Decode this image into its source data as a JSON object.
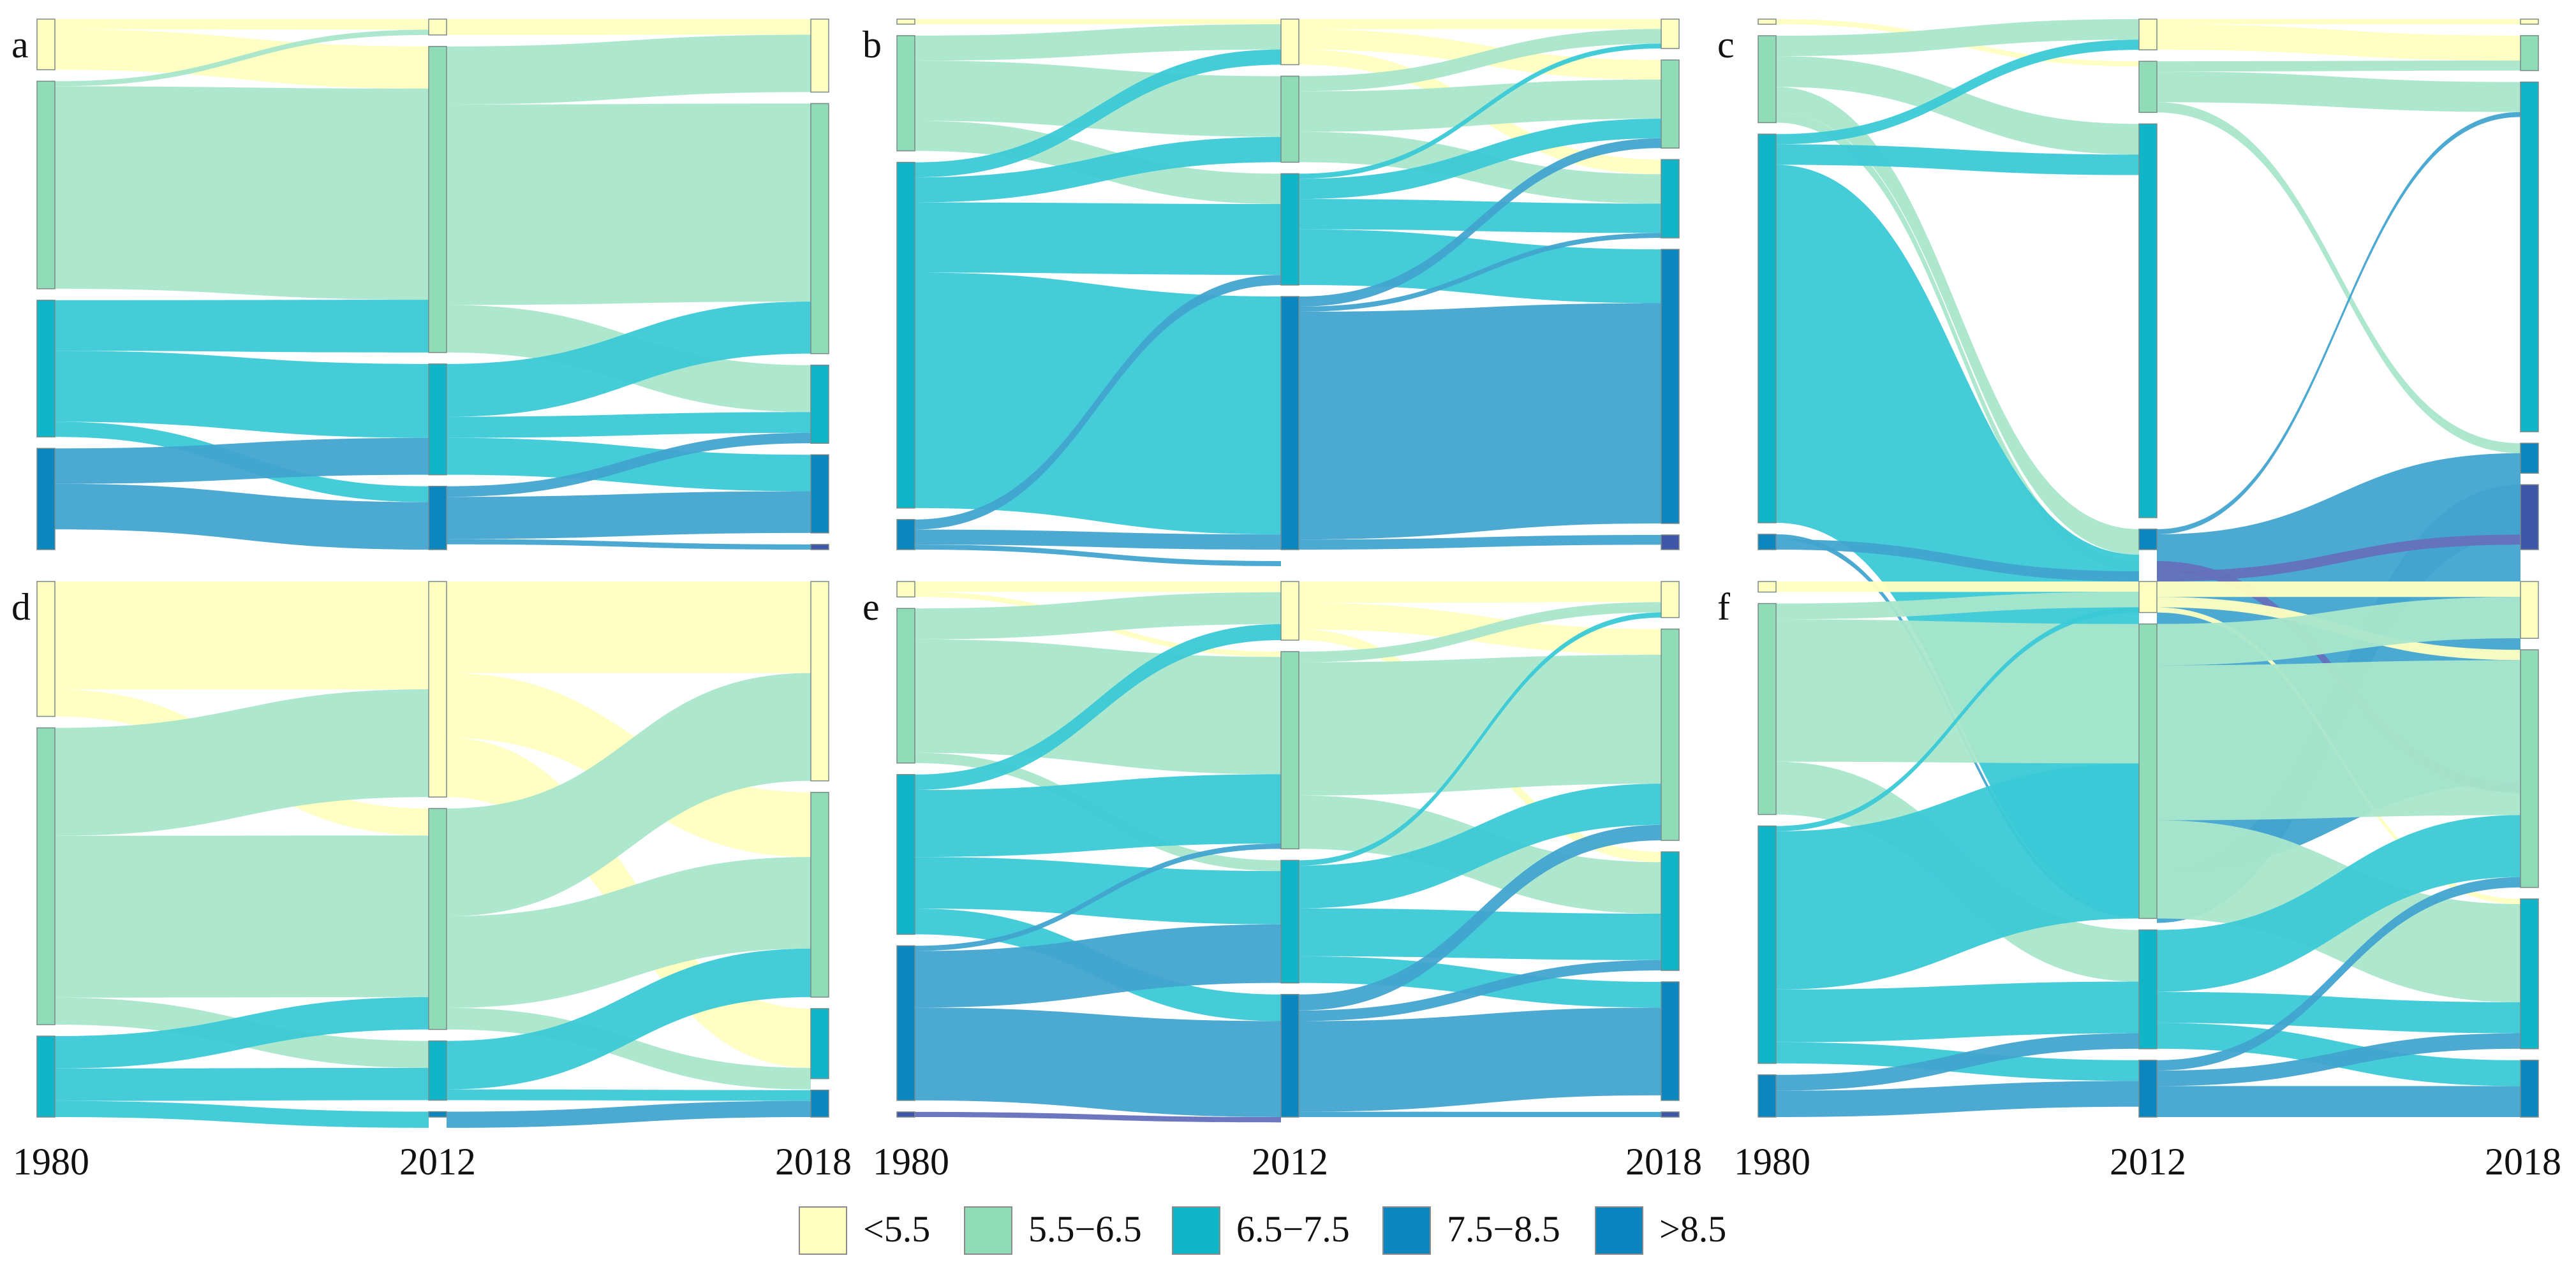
{
  "figure": {
    "categories": [
      "<5.5",
      "5.5−6.5",
      "6.5−7.5",
      "7.5−8.5",
      ">8.5"
    ],
    "node_colors": [
      "#ffffbf",
      "#8fdcb6",
      "#0fb6c8",
      "#0c86be",
      "#3f56a8"
    ],
    "flow_colors": [
      "#ffffc0",
      "#a9e6cb",
      "#3ac9d7",
      "#42a4cf",
      "#6570bc"
    ],
    "years": [
      "1980",
      "2012",
      "2018"
    ]
  },
  "chart_data": [
    {
      "type": "sankey",
      "panel": "a",
      "years": [
        "1980",
        "2012",
        "2018"
      ],
      "nodes": {
        "1980": [
          10,
          41,
          27,
          20,
          0
        ],
        "2012": [
          3,
          58,
          21,
          12,
          0
        ],
        "2018": [
          14,
          48,
          15,
          15,
          1
        ]
      },
      "flows_1980_2012": [
        {
          "from": "<5.5",
          "to": "<5.5",
          "value": 2
        },
        {
          "from": "<5.5",
          "to": "5.5−6.5",
          "value": 8
        },
        {
          "from": "5.5−6.5",
          "to": "<5.5",
          "value": 1
        },
        {
          "from": "5.5−6.5",
          "to": "5.5−6.5",
          "value": 40
        },
        {
          "from": "6.5−7.5",
          "to": "5.5−6.5",
          "value": 10
        },
        {
          "from": "6.5−7.5",
          "to": "6.5−7.5",
          "value": 14
        },
        {
          "from": "6.5−7.5",
          "to": "7.5−8.5",
          "value": 3
        },
        {
          "from": "7.5−8.5",
          "to": "6.5−7.5",
          "value": 7
        },
        {
          "from": "7.5−8.5",
          "to": "7.5−8.5",
          "value": 9
        }
      ],
      "flows_2012_2018": [
        {
          "from": "<5.5",
          "to": "<5.5",
          "value": 3
        },
        {
          "from": "5.5−6.5",
          "to": "<5.5",
          "value": 11
        },
        {
          "from": "5.5−6.5",
          "to": "5.5−6.5",
          "value": 38
        },
        {
          "from": "5.5−6.5",
          "to": "6.5−7.5",
          "value": 9
        },
        {
          "from": "6.5−7.5",
          "to": "5.5−6.5",
          "value": 10
        },
        {
          "from": "6.5−7.5",
          "to": "6.5−7.5",
          "value": 4
        },
        {
          "from": "6.5−7.5",
          "to": "7.5−8.5",
          "value": 7
        },
        {
          "from": "7.5−8.5",
          "to": "6.5−7.5",
          "value": 2
        },
        {
          "from": "7.5−8.5",
          "to": "7.5−8.5",
          "value": 8
        },
        {
          "from": "7.5−8.5",
          "to": ">8.5",
          "value": 1
        }
      ]
    },
    {
      "type": "sankey",
      "panel": "b",
      "years": [
        "1980",
        "2012",
        "2018"
      ],
      "nodes": {
        "1980": [
          1,
          23,
          69,
          6,
          0
        ],
        "2012": [
          9,
          17,
          22,
          50,
          0
        ],
        "2018": [
          6,
          18,
          16,
          56,
          3
        ]
      },
      "flows_1980_2012": [
        {
          "from": "<5.5",
          "to": "<5.5",
          "value": 1
        },
        {
          "from": "5.5−6.5",
          "to": "<5.5",
          "value": 5
        },
        {
          "from": "5.5−6.5",
          "to": "5.5−6.5",
          "value": 12
        },
        {
          "from": "5.5−6.5",
          "to": "6.5−7.5",
          "value": 6
        },
        {
          "from": "6.5−7.5",
          "to": "<5.5",
          "value": 3
        },
        {
          "from": "6.5−7.5",
          "to": "5.5−6.5",
          "value": 5
        },
        {
          "from": "6.5−7.5",
          "to": "6.5−7.5",
          "value": 14
        },
        {
          "from": "6.5−7.5",
          "to": "7.5−8.5",
          "value": 47
        },
        {
          "from": "7.5−8.5",
          "to": "6.5−7.5",
          "value": 2
        },
        {
          "from": "7.5−8.5",
          "to": "7.5−8.5",
          "value": 3
        },
        {
          "from": "7.5−8.5",
          "to": ">8.5",
          "value": 1
        }
      ],
      "flows_2012_2018": [
        {
          "from": "<5.5",
          "to": "<5.5",
          "value": 2
        },
        {
          "from": "<5.5",
          "to": "5.5−6.5",
          "value": 4
        },
        {
          "from": "<5.5",
          "to": "6.5−7.5",
          "value": 3
        },
        {
          "from": "5.5−6.5",
          "to": "<5.5",
          "value": 3
        },
        {
          "from": "5.5−6.5",
          "to": "5.5−6.5",
          "value": 8
        },
        {
          "from": "5.5−6.5",
          "to": "6.5−7.5",
          "value": 6
        },
        {
          "from": "6.5−7.5",
          "to": "<5.5",
          "value": 1
        },
        {
          "from": "6.5−7.5",
          "to": "5.5−6.5",
          "value": 4
        },
        {
          "from": "6.5−7.5",
          "to": "6.5−7.5",
          "value": 6
        },
        {
          "from": "6.5−7.5",
          "to": "7.5−8.5",
          "value": 11
        },
        {
          "from": "7.5−8.5",
          "to": "5.5−6.5",
          "value": 2
        },
        {
          "from": "7.5−8.5",
          "to": "6.5−7.5",
          "value": 1
        },
        {
          "from": "7.5−8.5",
          "to": "7.5−8.5",
          "value": 45
        },
        {
          "from": "7.5−8.5",
          "to": ">8.5",
          "value": 2
        },
        {
          "from": "7.5−8.5",
          "to": "7.5−8.5",
          "value": 0
        }
      ]
    },
    {
      "type": "sankey",
      "panel": "c",
      "years": [
        "1980",
        "2012",
        "2018"
      ],
      "nodes": {
        "1980": [
          1,
          17,
          76,
          3,
          0
        ],
        "2012": [
          6,
          10,
          77,
          4,
          0
        ],
        "2018": [
          1,
          7,
          70,
          6,
          13
        ]
      },
      "flows_1980_2012": [
        {
          "from": "<5.5",
          "to": "5.5−6.5",
          "value": 1
        },
        {
          "from": "5.5−6.5",
          "to": "<5.5",
          "value": 4
        },
        {
          "from": "5.5−6.5",
          "to": "6.5−7.5",
          "value": 6
        },
        {
          "from": "5.5−6.5",
          "to": "7.5−8.5",
          "value": 5
        },
        {
          "from": "5.5−6.5",
          "to": ">8.5",
          "value": 2
        },
        {
          "from": "6.5−7.5",
          "to": "<5.5",
          "value": 2
        },
        {
          "from": "6.5−7.5",
          "to": "6.5−7.5",
          "value": 4
        },
        {
          "from": "6.5−7.5",
          "to": "7.5−8.5",
          "value": 70
        },
        {
          "from": "7.5−8.5",
          "to": "7.5−8.5",
          "value": 1
        },
        {
          "from": "7.5−8.5",
          "to": ">8.5",
          "value": 2
        }
      ],
      "flows_2012_2018": [
        {
          "from": "<5.5",
          "to": "<5.5",
          "value": 1
        },
        {
          "from": "<5.5",
          "to": "5.5−6.5",
          "value": 5
        },
        {
          "from": "5.5−6.5",
          "to": "5.5−6.5",
          "value": 2
        },
        {
          "from": "5.5−6.5",
          "to": "6.5−7.5",
          "value": 6
        },
        {
          "from": "5.5−6.5",
          "to": "7.5−8.5",
          "value": 2
        },
        {
          "from": "7.5−8.5",
          "to": "6.5−7.5",
          "value": 1
        },
        {
          "from": "7.5−8.5",
          "to": "7.5−8.5",
          "value": 66
        },
        {
          "from": "7.5−8.5",
          "to": ">8.5",
          "value": 10
        },
        {
          "from": ">8.5",
          "to": "7.5−8.5",
          "value": 2
        },
        {
          "from": ">8.5",
          "to": ">8.5",
          "value": 2
        }
      ]
    },
    {
      "type": "sankey",
      "panel": "d",
      "years": [
        "1980",
        "2012",
        "2018"
      ],
      "nodes": {
        "1980": [
          25,
          55,
          15,
          0,
          0
        ],
        "2012": [
          40,
          41,
          11,
          1,
          0
        ],
        "2018": [
          37,
          38,
          13,
          5,
          0
        ]
      },
      "flows_1980_2012": [
        {
          "from": "<5.5",
          "to": "<5.5",
          "value": 20
        },
        {
          "from": "<5.5",
          "to": "5.5−6.5",
          "value": 5
        },
        {
          "from": "5.5−6.5",
          "to": "<5.5",
          "value": 20
        },
        {
          "from": "5.5−6.5",
          "to": "5.5−6.5",
          "value": 30
        },
        {
          "from": "5.5−6.5",
          "to": "6.5−7.5",
          "value": 5
        },
        {
          "from": "6.5−7.5",
          "to": "5.5−6.5",
          "value": 6
        },
        {
          "from": "6.5−7.5",
          "to": "6.5−7.5",
          "value": 6
        },
        {
          "from": "6.5−7.5",
          "to": "7.5−8.5",
          "value": 3
        }
      ],
      "flows_2012_2018": [
        {
          "from": "<5.5",
          "to": "<5.5",
          "value": 17
        },
        {
          "from": "<5.5",
          "to": "5.5−6.5",
          "value": 12
        },
        {
          "from": "<5.5",
          "to": "6.5−7.5",
          "value": 11
        },
        {
          "from": "5.5−6.5",
          "to": "<5.5",
          "value": 20
        },
        {
          "from": "5.5−6.5",
          "to": "5.5−6.5",
          "value": 17
        },
        {
          "from": "5.5−6.5",
          "to": "6.5−7.5",
          "value": 4
        },
        {
          "from": "6.5−7.5",
          "to": "5.5−6.5",
          "value": 9
        },
        {
          "from": "6.5−7.5",
          "to": "7.5−8.5",
          "value": 2
        },
        {
          "from": "7.5−8.5",
          "to": "7.5−8.5",
          "value": 3
        }
      ]
    },
    {
      "type": "sankey",
      "panel": "e",
      "years": [
        "1980",
        "2012",
        "2018"
      ],
      "nodes": {
        "1980": [
          3,
          30,
          31,
          30,
          1
        ],
        "2012": [
          11,
          37,
          23,
          23,
          0
        ],
        "2018": [
          7,
          41,
          23,
          23,
          1
        ]
      },
      "flows_1980_2012": [
        {
          "from": "<5.5",
          "to": "<5.5",
          "value": 2
        },
        {
          "from": "<5.5",
          "to": "5.5−6.5",
          "value": 1
        },
        {
          "from": "5.5−6.5",
          "to": "<5.5",
          "value": 6
        },
        {
          "from": "5.5−6.5",
          "to": "5.5−6.5",
          "value": 22
        },
        {
          "from": "5.5−6.5",
          "to": "6.5−7.5",
          "value": 2
        },
        {
          "from": "6.5−7.5",
          "to": "<5.5",
          "value": 3
        },
        {
          "from": "6.5−7.5",
          "to": "5.5−6.5",
          "value": 13
        },
        {
          "from": "6.5−7.5",
          "to": "6.5−7.5",
          "value": 10
        },
        {
          "from": "6.5−7.5",
          "to": "7.5−8.5",
          "value": 5
        },
        {
          "from": "7.5−8.5",
          "to": "5.5−6.5",
          "value": 1
        },
        {
          "from": "7.5−8.5",
          "to": "6.5−7.5",
          "value": 11
        },
        {
          "from": "7.5−8.5",
          "to": "7.5−8.5",
          "value": 18
        },
        {
          "from": ">8.5",
          "to": "7.5−8.5",
          "value": 1
        }
      ],
      "flows_2012_2018": [
        {
          "from": "<5.5",
          "to": "<5.5",
          "value": 4
        },
        {
          "from": "<5.5",
          "to": "5.5−6.5",
          "value": 5
        },
        {
          "from": "<5.5",
          "to": "6.5−7.5",
          "value": 2
        },
        {
          "from": "5.5−6.5",
          "to": "<5.5",
          "value": 2
        },
        {
          "from": "5.5−6.5",
          "to": "5.5−6.5",
          "value": 25
        },
        {
          "from": "5.5−6.5",
          "to": "6.5−7.5",
          "value": 10
        },
        {
          "from": "6.5−7.5",
          "to": "<5.5",
          "value": 1
        },
        {
          "from": "6.5−7.5",
          "to": "5.5−6.5",
          "value": 8
        },
        {
          "from": "6.5−7.5",
          "to": "6.5−7.5",
          "value": 9
        },
        {
          "from": "6.5−7.5",
          "to": "7.5−8.5",
          "value": 5
        },
        {
          "from": "7.5−8.5",
          "to": "5.5−6.5",
          "value": 3
        },
        {
          "from": "7.5−8.5",
          "to": "6.5−7.5",
          "value": 2
        },
        {
          "from": "7.5−8.5",
          "to": "7.5−8.5",
          "value": 17
        },
        {
          "from": "7.5−8.5",
          "to": ">8.5",
          "value": 1
        }
      ]
    },
    {
      "type": "sankey",
      "panel": "f",
      "years": [
        "1980",
        "2012",
        "2018"
      ],
      "nodes": {
        "1980": [
          2,
          40,
          45,
          8,
          0
        ],
        "2012": [
          6,
          57,
          23,
          11,
          0
        ],
        "2018": [
          11,
          46,
          29,
          11,
          0
        ]
      },
      "flows_1980_2012": [
        {
          "from": "<5.5",
          "to": "<5.5",
          "value": 2
        },
        {
          "from": "5.5−6.5",
          "to": "<5.5",
          "value": 3
        },
        {
          "from": "5.5−6.5",
          "to": "5.5−6.5",
          "value": 27
        },
        {
          "from": "5.5−6.5",
          "to": "6.5−7.5",
          "value": 10
        },
        {
          "from": "6.5−7.5",
          "to": "<5.5",
          "value": 1
        },
        {
          "from": "6.5−7.5",
          "to": "5.5−6.5",
          "value": 30
        },
        {
          "from": "6.5−7.5",
          "to": "6.5−7.5",
          "value": 10
        },
        {
          "from": "6.5−7.5",
          "to": "7.5−8.5",
          "value": 4
        },
        {
          "from": "7.5−8.5",
          "to": "6.5−7.5",
          "value": 3
        },
        {
          "from": "7.5−8.5",
          "to": "7.5−8.5",
          "value": 5
        }
      ],
      "flows_2012_2018": [
        {
          "from": "<5.5",
          "to": "<5.5",
          "value": 3
        },
        {
          "from": "<5.5",
          "to": "5.5−6.5",
          "value": 2
        },
        {
          "from": "<5.5",
          "to": "6.5−7.5",
          "value": 1
        },
        {
          "from": "5.5−6.5",
          "to": "<5.5",
          "value": 8
        },
        {
          "from": "5.5−6.5",
          "to": "5.5−6.5",
          "value": 30
        },
        {
          "from": "5.5−6.5",
          "to": "6.5−7.5",
          "value": 19
        },
        {
          "from": "6.5−7.5",
          "to": "5.5−6.5",
          "value": 12
        },
        {
          "from": "6.5−7.5",
          "to": "6.5−7.5",
          "value": 6
        },
        {
          "from": "6.5−7.5",
          "to": "7.5−8.5",
          "value": 5
        },
        {
          "from": "7.5−8.5",
          "to": "5.5−6.5",
          "value": 2
        },
        {
          "from": "7.5−8.5",
          "to": "6.5−7.5",
          "value": 3
        },
        {
          "from": "7.5−8.5",
          "to": "7.5−8.5",
          "value": 6
        }
      ]
    }
  ],
  "legend": {
    "items": [
      "<5.5",
      "5.5−6.5",
      "6.5−7.5",
      "7.5−8.5",
      ">8.5"
    ],
    "colors": [
      "#ffffbf",
      "#8fdcb6",
      "#0fb6c8",
      "#0c86be",
      "#0a84c0"
    ]
  }
}
